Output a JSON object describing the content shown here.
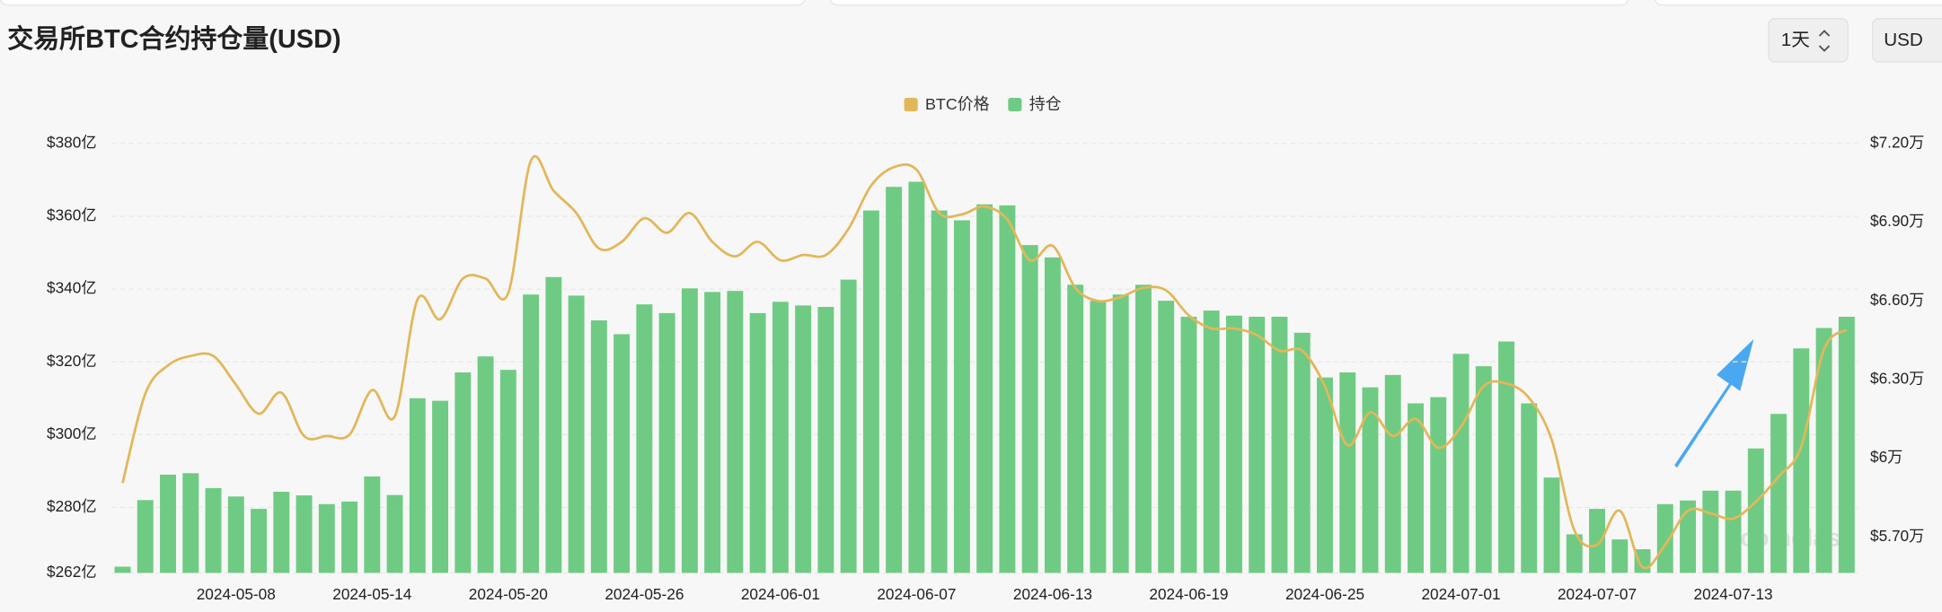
{
  "controls": [
    "1天",
    "USD"
  ],
  "chart_data": {
    "type": "bar",
    "title": "交易所BTC合约持仓量(USD)",
    "watermark": "coinglass",
    "categories": [
      null,
      null,
      null,
      null,
      null,
      "2024-05-08",
      null,
      null,
      null,
      null,
      null,
      "2024-05-14",
      null,
      null,
      null,
      null,
      null,
      "2024-05-20",
      null,
      null,
      null,
      null,
      null,
      "2024-05-26",
      null,
      null,
      null,
      null,
      null,
      "2024-06-01",
      null,
      null,
      null,
      null,
      null,
      "2024-06-07",
      null,
      null,
      null,
      null,
      null,
      "2024-06-13",
      null,
      null,
      null,
      null,
      null,
      "2024-06-19",
      null,
      null,
      null,
      null,
      null,
      "2024-06-25",
      null,
      null,
      null,
      null,
      null,
      "2024-07-01",
      null,
      null,
      null,
      null,
      null,
      "2024-07-07",
      null,
      null,
      null,
      null,
      null,
      "2024-07-13",
      null,
      null,
      null,
      null,
      null
    ],
    "series": [
      {
        "name": "BTC价格",
        "type": "line",
        "axis": "y2",
        "color": "#e2b75a",
        "values": [
          5.906,
          6.246,
          6.354,
          6.39,
          6.39,
          6.28,
          6.17,
          6.25,
          6.085,
          6.085,
          6.09,
          6.26,
          6.16,
          6.605,
          6.53,
          6.685,
          6.685,
          6.63,
          7.135,
          7.02,
          6.935,
          6.8,
          6.825,
          6.915,
          6.86,
          6.935,
          6.825,
          6.77,
          6.825,
          6.755,
          6.775,
          6.775,
          6.875,
          7.04,
          7.11,
          7.1,
          6.935,
          6.93,
          6.96,
          6.91,
          6.755,
          6.81,
          6.65,
          6.6,
          6.615,
          6.65,
          6.64,
          6.545,
          6.495,
          6.495,
          6.47,
          6.41,
          6.41,
          6.275,
          6.05,
          6.175,
          6.085,
          6.15,
          6.04,
          6.12,
          6.275,
          6.285,
          6.23,
          6.07,
          5.725,
          5.67,
          5.8,
          5.585,
          5.67,
          5.8,
          5.79,
          5.77,
          5.835,
          5.93,
          6.045,
          6.415,
          6.49
        ]
      },
      {
        "name": "持仓",
        "type": "bar",
        "color": "#6fcb83",
        "values": [
          263.7,
          282,
          289,
          289.4,
          285.3,
          283,
          279.6,
          284.3,
          283.3,
          280.9,
          281.6,
          288.5,
          283.4,
          310,
          309.3,
          317.1,
          321.5,
          317.8,
          338.5,
          343.3,
          338.2,
          331.4,
          327.6,
          335.8,
          333.4,
          340.2,
          339.2,
          339.5,
          333.4,
          336.5,
          335.5,
          335.1,
          342.6,
          361.6,
          368.1,
          369.5,
          361.6,
          358.9,
          363.3,
          363,
          352.1,
          348.7,
          341.2,
          336.8,
          338.5,
          341.2,
          336.8,
          332.4,
          334.1,
          332.7,
          332.4,
          332.4,
          328,
          315.7,
          317.1,
          313,
          316.4,
          308.6,
          310.3,
          322.2,
          318.8,
          325.6,
          308.6,
          288.2,
          272.6,
          279.6,
          271.2,
          268.5,
          280.9,
          281.9,
          284.6,
          284.6,
          296.2,
          305.7,
          323.7,
          329.3,
          332.4
        ]
      }
    ],
    "ylim": [
      262,
      380
    ],
    "yticks": [
      {
        "value": 262,
        "label": "$262亿"
      },
      {
        "value": 280,
        "label": "$280亿"
      },
      {
        "value": 300,
        "label": "$300亿"
      },
      {
        "value": 320,
        "label": "$320亿"
      },
      {
        "value": 340,
        "label": "$340亿"
      },
      {
        "value": 360,
        "label": "$360亿"
      },
      {
        "value": 380,
        "label": "$380亿"
      }
    ],
    "y2lim": [
      5.563,
      7.2
    ],
    "y2ticks": [
      {
        "value": 5.7,
        "label": "$5.70万"
      },
      {
        "value": 6,
        "label": "$6万"
      },
      {
        "value": 6.3,
        "label": "$6.30万"
      },
      {
        "value": 6.6,
        "label": "$6.60万"
      },
      {
        "value": 6.9,
        "label": "$6.90万"
      },
      {
        "value": 7.2,
        "label": "$7.20万"
      }
    ],
    "grid": true,
    "legend": "top"
  }
}
